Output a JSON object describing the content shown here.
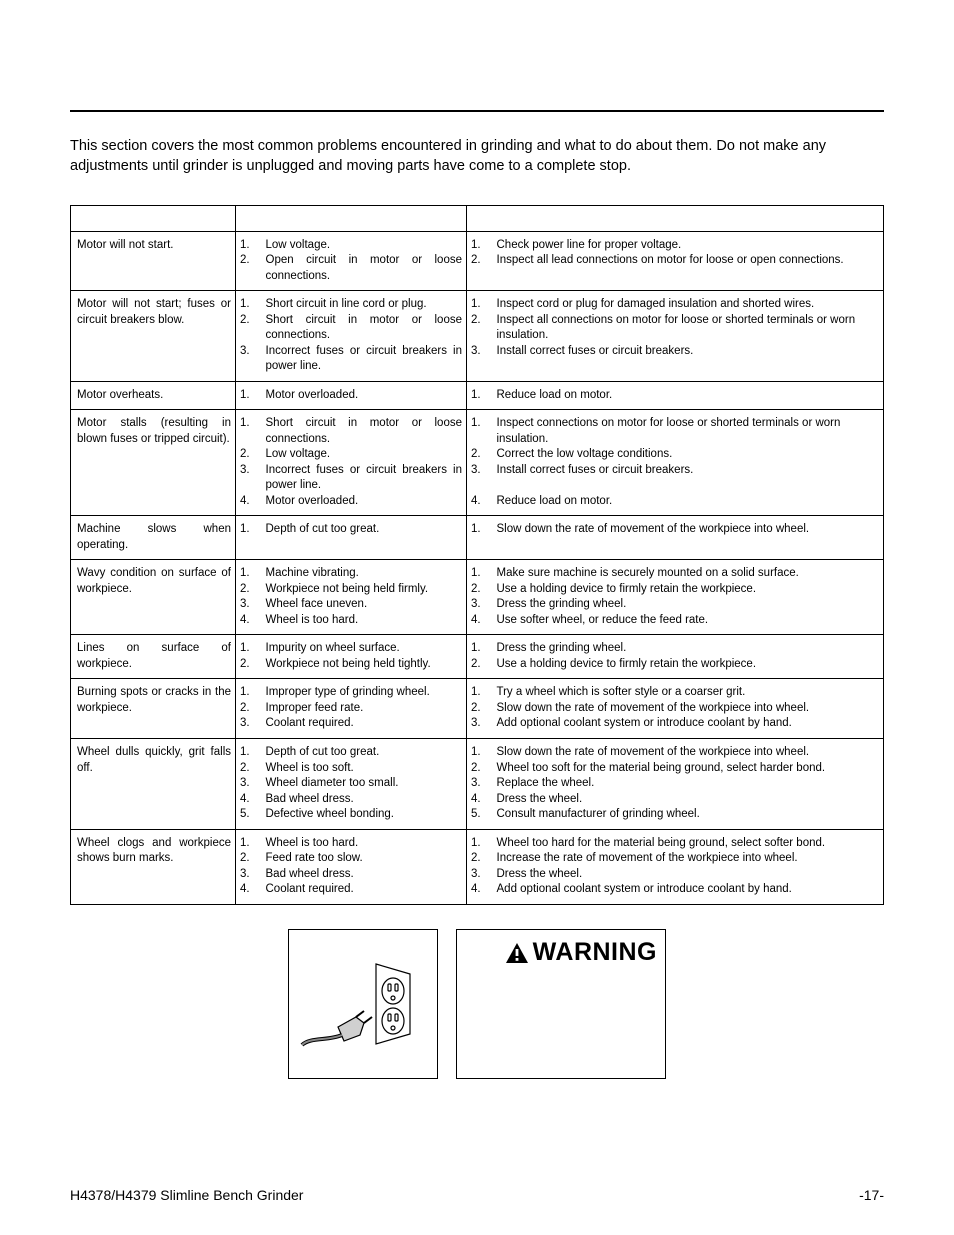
{
  "intro": "This section covers the most common problems encountered in grinding and what to do about them. Do not make any adjustments until grinder is unplugged and moving parts have come to a complete stop.",
  "table": {
    "headers": {
      "symptom": "",
      "cause": "",
      "remedy": ""
    },
    "rows": [
      {
        "symptom": "Motor will not start.",
        "cause_nums": [
          "1.",
          "2."
        ],
        "causes": [
          "Low voltage.",
          "Open circuit in motor or loose connections."
        ],
        "rem_nums": [
          "1.",
          "2."
        ],
        "remedies": [
          "Check power line for proper voltage.",
          "Inspect all lead connections on motor for loose or open connections."
        ]
      },
      {
        "symptom": "Motor will not start; fuses or circuit breakers blow.",
        "cause_nums": [
          "1.",
          "2.",
          "",
          "3."
        ],
        "causes": [
          "Short circuit in line cord or plug.",
          "Short circuit in motor or loose connections.",
          "Incorrect fuses or circuit breakers in power line."
        ],
        "rem_nums": [
          "1.",
          "2.",
          "",
          "3."
        ],
        "remedies": [
          "Inspect cord or plug for damaged insulation and shorted wires.",
          "Inspect all connections on motor for loose or shorted terminals or worn insulation.",
          "Install correct fuses or circuit breakers."
        ]
      },
      {
        "symptom": "Motor overheats.",
        "cause_nums": [
          "1."
        ],
        "causes": [
          "Motor overloaded."
        ],
        "rem_nums": [
          "1."
        ],
        "remedies": [
          "Reduce load on motor."
        ]
      },
      {
        "symptom": "Motor stalls (resulting in blown fuses or tripped circuit).",
        "cause_nums": [
          "1.",
          "",
          "2.",
          "3.",
          "",
          "4."
        ],
        "causes": [
          "Short circuit in motor or loose connections.",
          "Low voltage.",
          "Incorrect fuses or circuit breakers in power line.",
          "Motor overloaded."
        ],
        "rem_nums": [
          "1.",
          "",
          "2",
          "3.",
          "",
          "4."
        ],
        "remedies": [
          "Inspect connections on motor for loose or shorted terminals or worn insulation.",
          "Correct the low voltage conditions.",
          "Install correct fuses or circuit breakers.",
          "",
          "Reduce load on motor."
        ]
      },
      {
        "symptom": "Machine slows when operating.",
        "cause_nums": [
          "1."
        ],
        "causes": [
          "Depth of cut too great."
        ],
        "rem_nums": [
          "1."
        ],
        "remedies": [
          "Slow down the rate of movement of the workpiece into wheel."
        ]
      },
      {
        "symptom": "Wavy condition on surface of workpiece.",
        "cause_nums": [
          "1.",
          "2.",
          "3.",
          "4."
        ],
        "causes": [
          "Machine vibrating.",
          "Workpiece not being held firmly.",
          "Wheel face uneven.",
          "Wheel is too hard."
        ],
        "rem_nums": [
          "1.",
          "2.",
          "3.",
          "4."
        ],
        "remedies": [
          "Make sure machine is securely mounted on a solid surface.",
          "Use a holding device to firmly retain the workpiece.",
          "Dress the grinding wheel.",
          "Use softer wheel, or reduce the feed rate."
        ]
      },
      {
        "symptom": "Lines on surface of workpiece.",
        "cause_nums": [
          "1.",
          "2."
        ],
        "causes": [
          "Impurity on wheel surface.",
          "Workpiece not being held tightly."
        ],
        "rem_nums": [
          "1.",
          "2."
        ],
        "remedies": [
          "Dress the grinding wheel.",
          "Use a holding device to firmly retain the workpiece."
        ]
      },
      {
        "symptom": "Burning spots or cracks in the workpiece.",
        "cause_nums": [
          "1.",
          "2.",
          "3."
        ],
        "causes": [
          "Improper type of grinding wheel.",
          "Improper feed rate.",
          "Coolant required."
        ],
        "rem_nums": [
          "1.",
          "2.",
          "3."
        ],
        "remedies": [
          "Try a wheel which is softer style or a coarser grit.",
          "Slow down the rate of movement of the workpiece into wheel.",
          "Add optional coolant system or introduce coolant by hand."
        ]
      },
      {
        "symptom": "Wheel dulls quickly, grit falls off.",
        "cause_nums": [
          "1.",
          "2.",
          "3.",
          "4.",
          "5."
        ],
        "causes": [
          "Depth of cut too great.",
          "Wheel is too soft.",
          "Wheel diameter too small.",
          "Bad wheel dress.",
          "Defective wheel bonding."
        ],
        "rem_nums": [
          "1.",
          "2.",
          "3.",
          "4.",
          "5."
        ],
        "remedies": [
          "Slow down the rate of movement of the workpiece into wheel.",
          "Wheel too soft for the material being ground, select harder bond.",
          "Replace the wheel.",
          "Dress the wheel.",
          "Consult manufacturer of grinding wheel."
        ]
      },
      {
        "symptom": "Wheel clogs and workpiece shows burn marks.",
        "cause_nums": [
          "1.",
          "2.",
          "3.",
          "4."
        ],
        "causes": [
          "Wheel is too hard.",
          "Feed rate too slow.",
          "Bad wheel dress.",
          "Coolant required."
        ],
        "rem_nums": [
          "1.",
          "2.",
          "3.",
          "4."
        ],
        "remedies": [
          "Wheel too hard for the material being ground, select softer bond.",
          "Increase the rate of movement of the workpiece into wheel.",
          "Dress the wheel.",
          "Add optional coolant system or introduce coolant by hand."
        ]
      }
    ]
  },
  "warning_label": "WARNING",
  "footer_left": "H4378/H4379 Slimline Bench Grinder",
  "footer_right": "-17-",
  "colors": {
    "text": "#000000",
    "bg": "#ffffff",
    "rule": "#000000"
  },
  "fonts": {
    "body_pt": 12,
    "intro_pt": 14.5,
    "table_pt": 11.5,
    "warning_pt": 25,
    "footer_pt": 14
  }
}
